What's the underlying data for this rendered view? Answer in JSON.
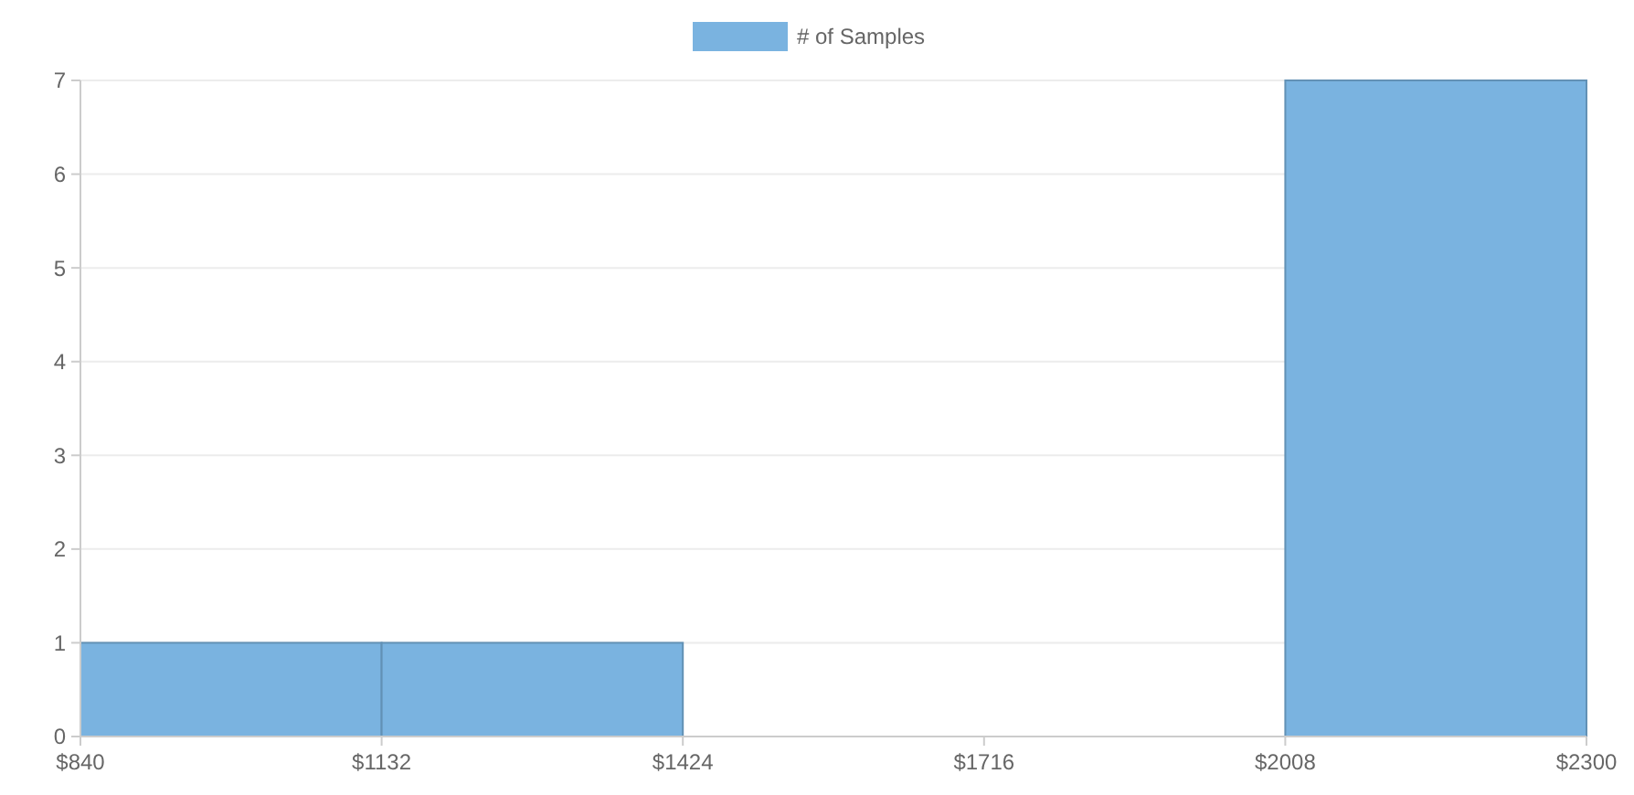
{
  "chart_data": {
    "type": "histogram",
    "bins": [
      840,
      1132,
      1424,
      1716,
      2008,
      2300
    ],
    "series": [
      {
        "name": "# of Samples",
        "color": "#7ab3e0",
        "values": [
          1,
          1,
          0,
          0,
          7
        ]
      }
    ],
    "xlim": [
      840,
      2300
    ],
    "xticks": [
      {
        "value": 840,
        "label": "$840"
      },
      {
        "value": 1132,
        "label": "$1132"
      },
      {
        "value": 1424,
        "label": "$1424"
      },
      {
        "value": 1716,
        "label": "$1716"
      },
      {
        "value": 2008,
        "label": "$2008"
      },
      {
        "value": 2300,
        "label": "$2300"
      }
    ],
    "ylim": [
      0,
      7
    ],
    "yticks": [
      0,
      1,
      2,
      3,
      4,
      5,
      6,
      7
    ],
    "grid": "y",
    "legend": "top"
  }
}
